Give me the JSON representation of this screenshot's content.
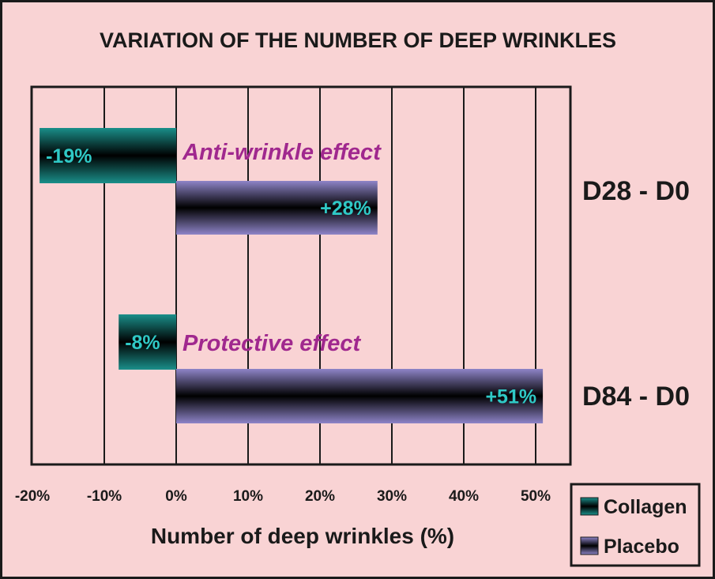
{
  "chart_data": {
    "type": "bar",
    "orientation": "horizontal",
    "title": "VARIATION OF THE NUMBER OF DEEP WRINKLES",
    "xlabel": "Number of deep wrinkles (%)",
    "xlim": [
      -20,
      55
    ],
    "xticks": [
      -20,
      -10,
      0,
      10,
      20,
      30,
      40,
      50
    ],
    "xtick_labels": [
      "-20%",
      "-10%",
      "0%",
      "10%",
      "20%",
      "30%",
      "40%",
      "50%"
    ],
    "grid": true,
    "legend_position": "bottom-right",
    "categories": [
      "D28 - D0",
      "D84 - D0"
    ],
    "series": [
      {
        "name": "Collagen",
        "values": [
          -19,
          -8
        ],
        "labels": [
          "-19%",
          "-8%"
        ],
        "color": "#1a8f8a"
      },
      {
        "name": "Placebo",
        "values": [
          28,
          51
        ],
        "labels": [
          "+28%",
          "+51%"
        ],
        "color": "#8e84c8"
      }
    ],
    "annotations": [
      "Anti-wrinkle effect",
      "Protective effect"
    ]
  }
}
